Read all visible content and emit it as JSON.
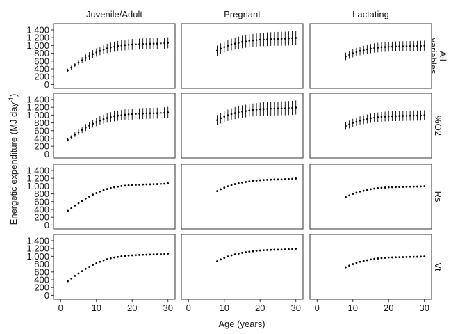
{
  "chart_data": {
    "type": "scatter",
    "facet_columns": [
      "Juvenile/Adult",
      "Pregnant",
      "Lactating"
    ],
    "facet_rows": [
      [
        "All",
        "variables"
      ],
      [
        "%O2"
      ],
      [
        "Rs"
      ],
      [
        "Vt"
      ]
    ],
    "xlabel": "Age (years)",
    "ylabel": {
      "main": "Energetic expenditure (MJ day",
      "sup": "-1",
      "close": ")"
    },
    "xlim": [
      -2,
      32
    ],
    "ylim": [
      -100,
      1560
    ],
    "x_ticks": [
      0,
      10,
      20,
      30
    ],
    "x_tick_labels": [
      "0",
      "10",
      "20",
      "30"
    ],
    "y_ticks": [
      0,
      200,
      400,
      600,
      800,
      1000,
      1200,
      1400
    ],
    "y_tick_labels": [
      "0",
      "200",
      "400",
      "600",
      "800",
      "1,000",
      "1,200",
      "1,400"
    ],
    "grid": false,
    "series": {
      "Juvenile/Adult": {
        "x": [
          2,
          3,
          4,
          5,
          6,
          7,
          8,
          9,
          10,
          11,
          12,
          13,
          14,
          15,
          16,
          17,
          18,
          19,
          20,
          21,
          22,
          23,
          24,
          25,
          26,
          27,
          28,
          29,
          30
        ],
        "y": [
          365,
          430,
          500,
          560,
          620,
          680,
          730,
          780,
          820,
          860,
          895,
          925,
          950,
          970,
          985,
          1000,
          1010,
          1020,
          1025,
          1030,
          1035,
          1040,
          1042,
          1045,
          1048,
          1050,
          1055,
          1060,
          1070
        ]
      },
      "Pregnant": {
        "x": [
          8,
          9,
          10,
          11,
          12,
          13,
          14,
          15,
          16,
          17,
          18,
          19,
          20,
          21,
          22,
          23,
          24,
          25,
          26,
          27,
          28,
          29,
          30
        ],
        "y": [
          870,
          920,
          960,
          995,
          1025,
          1050,
          1070,
          1090,
          1105,
          1120,
          1130,
          1140,
          1150,
          1155,
          1160,
          1165,
          1168,
          1170,
          1172,
          1175,
          1180,
          1185,
          1195
        ]
      },
      "Lactating": {
        "x": [
          8,
          9,
          10,
          11,
          12,
          13,
          14,
          15,
          16,
          17,
          18,
          19,
          20,
          21,
          22,
          23,
          24,
          25,
          26,
          27,
          28,
          29,
          30
        ],
        "y": [
          720,
          760,
          800,
          830,
          860,
          880,
          900,
          920,
          935,
          945,
          955,
          962,
          968,
          972,
          975,
          978,
          980,
          982,
          984,
          986,
          988,
          990,
          995
        ]
      }
    },
    "error_halfwidth": {
      "Juvenile/Adult": [
        40,
        50,
        60,
        70,
        80,
        90,
        95,
        100,
        105,
        110,
        115,
        120,
        125,
        130,
        132,
        134,
        136,
        138,
        140,
        140,
        140,
        140,
        140,
        140,
        140,
        140,
        140,
        140,
        140
      ],
      "Pregnant": [
        130,
        135,
        140,
        145,
        150,
        155,
        158,
        160,
        162,
        164,
        166,
        168,
        170,
        172,
        174,
        175,
        176,
        177,
        178,
        179,
        180,
        180,
        180
      ],
      "Lactating": [
        95,
        100,
        105,
        108,
        110,
        112,
        115,
        118,
        120,
        122,
        124,
        125,
        126,
        127,
        128,
        129,
        130,
        130,
        130,
        130,
        130,
        130,
        130
      ]
    },
    "rows_with_error_bars": [
      0,
      1
    ]
  }
}
